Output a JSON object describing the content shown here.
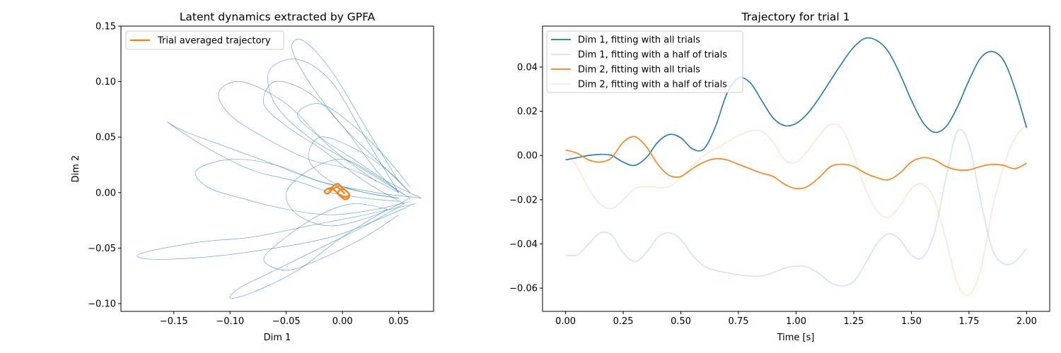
{
  "chart_data": [
    {
      "type": "line",
      "title": "Latent dynamics extracted by GPFA",
      "xlabel": "Dim 1",
      "ylabel": "Dim 2",
      "xlim": [
        -0.197,
        0.081
      ],
      "ylim": [
        -0.107,
        0.15
      ],
      "xticks": [
        -0.15,
        -0.1,
        -0.05,
        0.0,
        0.05
      ],
      "xtick_labels": [
        "−0.15",
        "−0.10",
        "−0.05",
        "0.00",
        "0.05"
      ],
      "yticks": [
        -0.1,
        -0.05,
        0.0,
        0.05,
        0.1,
        0.15
      ],
      "ytick_labels": [
        "−0.10",
        "−0.05",
        "0.00",
        "0.05",
        "0.10",
        "0.15"
      ],
      "legend_position": "upper-left",
      "grid": false,
      "series": [
        {
          "name": "Trial averaged trajectory",
          "color": "#ff7f0e",
          "x": [
            -0.012,
            -0.008,
            -0.004,
            0.0,
            0.004,
            0.006,
            0.005,
            0.002,
            -0.001,
            -0.004,
            -0.003,
            0.001,
            0.004,
            0.006,
            0.003,
            -0.001,
            -0.005,
            -0.008,
            -0.012,
            -0.016,
            -0.013,
            -0.009,
            -0.005,
            -0.001,
            0.002
          ],
          "y": [
            0.002,
            0.006,
            0.008,
            0.004,
            0.001,
            -0.002,
            -0.005,
            -0.006,
            -0.004,
            -0.001,
            0.002,
            0.003,
            0.001,
            -0.002,
            -0.004,
            -0.003,
            0.0,
            0.003,
            0.004,
            0.001,
            -0.001,
            0.003,
            0.005,
            0.002,
            -0.001
          ]
        }
      ],
      "trial_trajectories": {
        "color": "#1f77b4",
        "series_count": 20,
        "note_visible": false,
        "trials": [
          {
            "x": [
              0.07,
              0.03,
              -0.02,
              -0.06,
              -0.1,
              -0.14,
              -0.155,
              -0.12,
              -0.08,
              -0.04,
              -0.01,
              0.02,
              0.05
            ],
            "y": [
              -0.005,
              0.0,
              0.01,
              0.025,
              0.04,
              0.055,
              0.063,
              0.04,
              0.02,
              0.01,
              0.0,
              -0.005,
              -0.008
            ]
          },
          {
            "x": [
              0.065,
              0.02,
              -0.03,
              -0.08,
              -0.13,
              -0.18,
              -0.17,
              -0.12,
              -0.06,
              -0.01,
              0.03,
              0.06
            ],
            "y": [
              -0.01,
              -0.02,
              -0.03,
              -0.04,
              -0.045,
              -0.055,
              -0.06,
              -0.058,
              -0.05,
              -0.04,
              -0.025,
              -0.012
            ]
          },
          {
            "x": [
              0.06,
              0.03,
              0.0,
              -0.03,
              -0.045,
              -0.035,
              -0.01,
              0.02,
              0.05
            ],
            "y": [
              0.0,
              0.03,
              0.06,
              0.1,
              0.13,
              0.137,
              0.11,
              0.06,
              0.01
            ]
          },
          {
            "x": [
              0.06,
              0.02,
              -0.03,
              -0.06,
              -0.065,
              -0.04,
              -0.01,
              0.02,
              0.05
            ],
            "y": [
              -0.005,
              0.02,
              0.05,
              0.08,
              0.11,
              0.12,
              0.1,
              0.05,
              0.0
            ]
          },
          {
            "x": [
              0.055,
              0.02,
              -0.02,
              -0.06,
              -0.09,
              -0.1,
              -0.08,
              -0.04,
              0.0,
              0.04
            ],
            "y": [
              -0.01,
              -0.03,
              -0.05,
              -0.07,
              -0.085,
              -0.095,
              -0.09,
              -0.07,
              -0.04,
              -0.015
            ]
          },
          {
            "x": [
              0.05,
              0.01,
              -0.03,
              -0.07,
              -0.1,
              -0.11,
              -0.09,
              -0.05,
              -0.01,
              0.03
            ],
            "y": [
              0.0,
              0.02,
              0.03,
              0.05,
              0.07,
              0.09,
              0.1,
              0.08,
              0.04,
              0.01
            ]
          },
          {
            "x": [
              0.06,
              0.03,
              -0.01,
              -0.04,
              -0.05,
              -0.03,
              0.0,
              0.03,
              0.055
            ],
            "y": [
              -0.005,
              -0.02,
              -0.03,
              -0.02,
              0.0,
              0.02,
              0.03,
              0.015,
              -0.002
            ]
          },
          {
            "x": [
              0.055,
              0.02,
              -0.02,
              -0.05,
              -0.07,
              -0.06,
              -0.03,
              0.0,
              0.03,
              0.05
            ],
            "y": [
              -0.01,
              0.01,
              0.04,
              0.06,
              0.08,
              0.1,
              0.09,
              0.06,
              0.02,
              0.0
            ]
          },
          {
            "x": [
              0.06,
              0.03,
              -0.01,
              -0.05,
              -0.09,
              -0.12,
              -0.13,
              -0.1,
              -0.06,
              -0.02,
              0.02,
              0.05
            ],
            "y": [
              -0.008,
              -0.015,
              -0.02,
              -0.015,
              -0.005,
              0.005,
              0.02,
              0.03,
              0.025,
              0.01,
              0.0,
              -0.005
            ]
          },
          {
            "x": [
              0.07,
              0.04,
              0.01,
              -0.02,
              -0.04,
              -0.02,
              0.01,
              0.04,
              0.06
            ],
            "y": [
              -0.005,
              0.01,
              0.03,
              0.05,
              0.07,
              0.08,
              0.06,
              0.03,
              0.005
            ]
          },
          {
            "x": [
              0.05,
              0.02,
              -0.02,
              -0.05,
              -0.07,
              -0.05,
              -0.02,
              0.01,
              0.04
            ],
            "y": [
              -0.02,
              -0.04,
              -0.06,
              -0.07,
              -0.06,
              -0.04,
              -0.02,
              -0.01,
              -0.015
            ]
          },
          {
            "x": [
              0.06,
              0.04,
              0.01,
              -0.02,
              -0.03,
              -0.01,
              0.02,
              0.05
            ],
            "y": [
              0.0,
              0.02,
              0.04,
              0.05,
              0.03,
              0.01,
              0.0,
              -0.005
            ]
          }
        ]
      }
    },
    {
      "type": "line",
      "title": "Trajectory for trial 1",
      "xlabel": "Time [s]",
      "ylabel": "",
      "xlim": [
        -0.1,
        2.1
      ],
      "ylim": [
        -0.0705,
        0.0585
      ],
      "xticks": [
        0.0,
        0.25,
        0.5,
        0.75,
        1.0,
        1.25,
        1.5,
        1.75,
        2.0
      ],
      "xtick_labels": [
        "0.00",
        "0.25",
        "0.50",
        "0.75",
        "1.00",
        "1.25",
        "1.50",
        "1.75",
        "2.00"
      ],
      "yticks": [
        -0.06,
        -0.04,
        -0.02,
        0.0,
        0.02,
        0.04
      ],
      "ytick_labels": [
        "−0.06",
        "−0.04",
        "−0.02",
        "0.00",
        "0.02",
        "0.04"
      ],
      "legend_position": "upper-left",
      "grid": false,
      "x": [
        0.0,
        0.05,
        0.1,
        0.15,
        0.2,
        0.25,
        0.3,
        0.35,
        0.4,
        0.45,
        0.5,
        0.55,
        0.6,
        0.65,
        0.7,
        0.75,
        0.8,
        0.85,
        0.9,
        0.95,
        1.0,
        1.05,
        1.1,
        1.15,
        1.2,
        1.25,
        1.3,
        1.35,
        1.4,
        1.45,
        1.5,
        1.55,
        1.6,
        1.65,
        1.7,
        1.75,
        1.8,
        1.85,
        1.9,
        1.95,
        2.0
      ],
      "series": [
        {
          "name": "Dim 1, fitting with all trials",
          "color": "#1f77b4",
          "opacity": 1,
          "values": [
            -0.002,
            -0.001,
            0.0,
            0.0005,
            0.0,
            -0.003,
            -0.0045,
            -0.001,
            0.006,
            0.0095,
            0.008,
            0.003,
            0.003,
            0.013,
            0.028,
            0.035,
            0.033,
            0.025,
            0.017,
            0.0135,
            0.0145,
            0.019,
            0.026,
            0.034,
            0.042,
            0.049,
            0.053,
            0.052,
            0.047,
            0.037,
            0.025,
            0.015,
            0.0105,
            0.013,
            0.022,
            0.034,
            0.044,
            0.047,
            0.043,
            0.03,
            0.0125
          ]
        },
        {
          "name": "Dim 1, fitting with a half of trials",
          "color": "#1f77b4",
          "opacity": 0.2,
          "values": [
            -0.045,
            -0.045,
            -0.04,
            -0.035,
            -0.036,
            -0.044,
            -0.048,
            -0.044,
            -0.037,
            -0.035,
            -0.038,
            -0.045,
            -0.05,
            -0.052,
            -0.053,
            -0.054,
            -0.0545,
            -0.0545,
            -0.053,
            -0.051,
            -0.05,
            -0.0505,
            -0.0535,
            -0.0575,
            -0.059,
            -0.057,
            -0.049,
            -0.04,
            -0.0355,
            -0.038,
            -0.045,
            -0.046,
            -0.035,
            -0.01,
            0.011,
            0.005,
            -0.02,
            -0.042,
            -0.049,
            -0.048,
            -0.042
          ]
        },
        {
          "name": "Dim 2, fitting with all trials",
          "color": "#ff7f0e",
          "opacity": 1,
          "values": [
            0.0025,
            0.001,
            -0.002,
            -0.003,
            -0.001,
            0.006,
            0.0085,
            0.004,
            -0.004,
            -0.009,
            -0.0095,
            -0.006,
            -0.003,
            -0.0015,
            -0.002,
            -0.004,
            -0.006,
            -0.008,
            -0.0095,
            -0.013,
            -0.015,
            -0.014,
            -0.01,
            -0.005,
            -0.004,
            -0.005,
            -0.008,
            -0.01,
            -0.011,
            -0.008,
            -0.003,
            -0.001,
            -0.002,
            -0.005,
            -0.0065,
            -0.0065,
            -0.005,
            -0.004,
            -0.0045,
            -0.006,
            -0.0035
          ]
        },
        {
          "name": "Dim 2, fitting with a half of trials",
          "color": "#ff7f0e",
          "opacity": 0.2,
          "values": [
            0.002,
            -0.005,
            -0.015,
            -0.022,
            -0.024,
            -0.02,
            -0.015,
            -0.014,
            -0.0145,
            -0.014,
            -0.01,
            -0.005,
            0.0,
            0.003,
            0.006,
            0.009,
            0.011,
            0.011,
            0.006,
            -0.002,
            -0.003,
            0.002,
            0.009,
            0.014,
            0.012,
            0.0,
            -0.015,
            -0.025,
            -0.028,
            -0.023,
            -0.015,
            -0.013,
            -0.02,
            -0.038,
            -0.058,
            -0.063,
            -0.052,
            -0.025,
            -0.005,
            0.008,
            0.014
          ]
        }
      ]
    }
  ]
}
